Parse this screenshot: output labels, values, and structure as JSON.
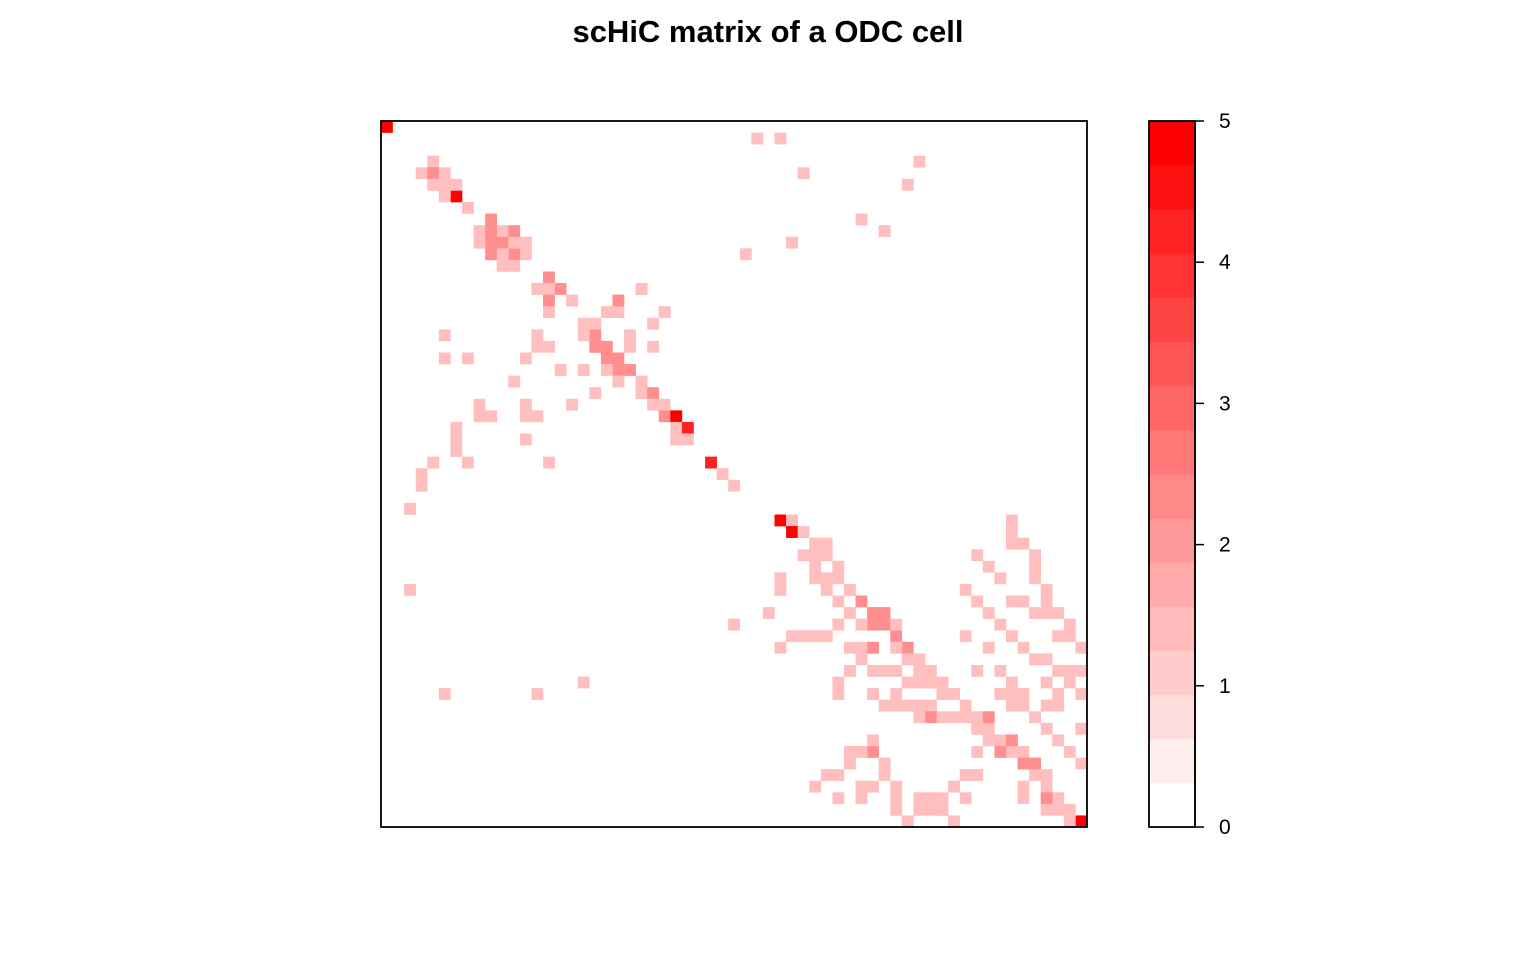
{
  "chart_data": {
    "type": "heatmap",
    "title": "scHiC matrix of a ODC cell",
    "xlabel": "",
    "ylabel": "",
    "n_bins": 61,
    "value_range": [
      0,
      5
    ],
    "colorbar": {
      "ticks": [
        0,
        1,
        2,
        3,
        4,
        5
      ],
      "tick_labels": [
        "0",
        "1",
        "2",
        "3",
        "4",
        "5"
      ],
      "levels": 16,
      "low_color": "#ffffff",
      "high_color": "#ff0000",
      "placement": "right"
    },
    "cells": [
      [
        0,
        0,
        5
      ],
      [
        60,
        60,
        5
      ],
      [
        4,
        3,
        1
      ],
      [
        3,
        4,
        1
      ],
      [
        4,
        4,
        2
      ],
      [
        5,
        4,
        1
      ],
      [
        4,
        5,
        1
      ],
      [
        5,
        5,
        1
      ],
      [
        6,
        6,
        4.7
      ],
      [
        5,
        6,
        1
      ],
      [
        6,
        5,
        1
      ],
      [
        7,
        7,
        1
      ],
      [
        9,
        8,
        2
      ],
      [
        10,
        9,
        1
      ],
      [
        8,
        9,
        1
      ],
      [
        9,
        9,
        2
      ],
      [
        10,
        10,
        2
      ],
      [
        11,
        11,
        2
      ],
      [
        9,
        10,
        2
      ],
      [
        10,
        11,
        1
      ],
      [
        11,
        10,
        1
      ],
      [
        12,
        10,
        1
      ],
      [
        9,
        11,
        2
      ],
      [
        11,
        9,
        2
      ],
      [
        10,
        12,
        1
      ],
      [
        11,
        12,
        1
      ],
      [
        12,
        11,
        1
      ],
      [
        8,
        10,
        1
      ],
      [
        14,
        13,
        2
      ],
      [
        15,
        14,
        2
      ],
      [
        16,
        15,
        1
      ],
      [
        13,
        14,
        1
      ],
      [
        14,
        14,
        1
      ],
      [
        14,
        15,
        2
      ],
      [
        14,
        16,
        1
      ],
      [
        18,
        18,
        2
      ],
      [
        17,
        18,
        1
      ],
      [
        18,
        17,
        1
      ],
      [
        17,
        17,
        1
      ],
      [
        18,
        19,
        2
      ],
      [
        19,
        19,
        2
      ],
      [
        19,
        20,
        2
      ],
      [
        20,
        20,
        2
      ],
      [
        20,
        21,
        2
      ],
      [
        21,
        21,
        2
      ],
      [
        19,
        21,
        1
      ],
      [
        21,
        19,
        1
      ],
      [
        20,
        22,
        1
      ],
      [
        22,
        22,
        1
      ],
      [
        22,
        23,
        1
      ],
      [
        23,
        23,
        2
      ],
      [
        23,
        24,
        1
      ],
      [
        24,
        24,
        1
      ],
      [
        24,
        25,
        2
      ],
      [
        25,
        25,
        4.7
      ],
      [
        25,
        26,
        1
      ],
      [
        26,
        26,
        4.3
      ],
      [
        26,
        27,
        1
      ],
      [
        25,
        27,
        1
      ],
      [
        28,
        29,
        4.3
      ],
      [
        29,
        30,
        1
      ],
      [
        30,
        31,
        1
      ],
      [
        34,
        34,
        5
      ],
      [
        35,
        34,
        1
      ],
      [
        35,
        35,
        5
      ],
      [
        36,
        35,
        1
      ],
      [
        37,
        36,
        1
      ],
      [
        38,
        36,
        1
      ],
      [
        37,
        37,
        1
      ],
      [
        37,
        38,
        1
      ],
      [
        36,
        37,
        1
      ],
      [
        38,
        37,
        1
      ],
      [
        39,
        38,
        1
      ],
      [
        38,
        39,
        1
      ],
      [
        39,
        39,
        1
      ],
      [
        40,
        40,
        1
      ],
      [
        41,
        41,
        2
      ],
      [
        42,
        42,
        2
      ],
      [
        43,
        43,
        2
      ],
      [
        44,
        44,
        2
      ],
      [
        43,
        42,
        2
      ],
      [
        42,
        43,
        2
      ],
      [
        44,
        43,
        1
      ],
      [
        45,
        45,
        2
      ],
      [
        45,
        46,
        1
      ],
      [
        46,
        46,
        1
      ],
      [
        47,
        47,
        1
      ],
      [
        46,
        47,
        1
      ],
      [
        47,
        48,
        1
      ],
      [
        48,
        48,
        1
      ],
      [
        49,
        49,
        1
      ],
      [
        50,
        50,
        1
      ],
      [
        51,
        51,
        1
      ],
      [
        52,
        52,
        1
      ],
      [
        53,
        53,
        1
      ],
      [
        54,
        54,
        1
      ],
      [
        55,
        55,
        1
      ],
      [
        56,
        56,
        1
      ],
      [
        57,
        57,
        1
      ],
      [
        58,
        58,
        1
      ],
      [
        59,
        59,
        1
      ],
      [
        52,
        51,
        2
      ],
      [
        51,
        52,
        1
      ],
      [
        53,
        54,
        2
      ],
      [
        54,
        53,
        2
      ],
      [
        55,
        54,
        1
      ],
      [
        56,
        55,
        2
      ],
      [
        57,
        56,
        1
      ],
      [
        3,
        31,
        1
      ],
      [
        2,
        33,
        1
      ],
      [
        2,
        40,
        1
      ],
      [
        17,
        48,
        1
      ],
      [
        5,
        49,
        1
      ],
      [
        13,
        49,
        1
      ],
      [
        12,
        24,
        1
      ],
      [
        12,
        25,
        1
      ],
      [
        13,
        25,
        1
      ],
      [
        12,
        27,
        1
      ],
      [
        14,
        29,
        1
      ],
      [
        15,
        21,
        1
      ],
      [
        17,
        21,
        1
      ],
      [
        16,
        24,
        1
      ],
      [
        18,
        23,
        1
      ],
      [
        6,
        28,
        1
      ],
      [
        7,
        29,
        1
      ],
      [
        6,
        27,
        1
      ],
      [
        6,
        26,
        1
      ],
      [
        4,
        29,
        1
      ],
      [
        3,
        30,
        1
      ],
      [
        5,
        20,
        1
      ],
      [
        5,
        18,
        1
      ],
      [
        7,
        20,
        1
      ],
      [
        8,
        24,
        1
      ],
      [
        8,
        25,
        1
      ],
      [
        9,
        25,
        1
      ],
      [
        11,
        22,
        1
      ],
      [
        12,
        20,
        1
      ],
      [
        13,
        18,
        1
      ],
      [
        13,
        19,
        1
      ],
      [
        14,
        19,
        1
      ],
      [
        20,
        16,
        1
      ],
      [
        20,
        15,
        2
      ],
      [
        19,
        16,
        1
      ],
      [
        22,
        14,
        1
      ],
      [
        24,
        16,
        1
      ],
      [
        23,
        17,
        1
      ],
      [
        21,
        18,
        1
      ],
      [
        23,
        19,
        1
      ],
      [
        31,
        11,
        1
      ],
      [
        35,
        10,
        1
      ],
      [
        43,
        9,
        1
      ],
      [
        41,
        8,
        1
      ],
      [
        45,
        5,
        1
      ],
      [
        46,
        3,
        1
      ],
      [
        36,
        4,
        1
      ],
      [
        32,
        1,
        1
      ],
      [
        34,
        1,
        1
      ],
      [
        37,
        39,
        1
      ],
      [
        38,
        40,
        1
      ],
      [
        39,
        41,
        1
      ],
      [
        40,
        42,
        1
      ],
      [
        41,
        43,
        1
      ],
      [
        42,
        45,
        2
      ],
      [
        44,
        45,
        1
      ],
      [
        43,
        47,
        1
      ],
      [
        44,
        47,
        1
      ],
      [
        44,
        49,
        1
      ],
      [
        45,
        50,
        1
      ],
      [
        46,
        50,
        1
      ],
      [
        47,
        50,
        1
      ],
      [
        47,
        51,
        2
      ],
      [
        48,
        51,
        1
      ],
      [
        49,
        51,
        1
      ],
      [
        50,
        51,
        1
      ],
      [
        51,
        52,
        1
      ],
      [
        52,
        53,
        1
      ],
      [
        54,
        41,
        1
      ],
      [
        55,
        41,
        1
      ],
      [
        56,
        42,
        1
      ],
      [
        58,
        44,
        1
      ],
      [
        59,
        44,
        1
      ],
      [
        60,
        45,
        1
      ],
      [
        61,
        45,
        1
      ],
      [
        61,
        46,
        1
      ],
      [
        59,
        47,
        1
      ],
      [
        60,
        47,
        1
      ],
      [
        58,
        49,
        1
      ],
      [
        57,
        48,
        1
      ],
      [
        57,
        50,
        1
      ],
      [
        58,
        50,
        1
      ],
      [
        51,
        37,
        1
      ],
      [
        52,
        38,
        1
      ],
      [
        53,
        39,
        1
      ],
      [
        50,
        40,
        1
      ],
      [
        51,
        41,
        1
      ],
      [
        52,
        42,
        1
      ],
      [
        53,
        43,
        1
      ],
      [
        54,
        44,
        1
      ],
      [
        55,
        45,
        1
      ],
      [
        56,
        46,
        1
      ],
      [
        57,
        46,
        1
      ],
      [
        58,
        47,
        1
      ],
      [
        59,
        48,
        1
      ],
      [
        60,
        49,
        1
      ],
      [
        61,
        50,
        1
      ],
      [
        61,
        51,
        1
      ],
      [
        60,
        52,
        1
      ],
      [
        39,
        43,
        1
      ],
      [
        38,
        44,
        1
      ],
      [
        41,
        45,
        1
      ],
      [
        40,
        45,
        1
      ],
      [
        41,
        46,
        1
      ],
      [
        40,
        47,
        1
      ],
      [
        42,
        47,
        1
      ],
      [
        39,
        48,
        1
      ],
      [
        39,
        49,
        1
      ],
      [
        42,
        49,
        1
      ],
      [
        43,
        50,
        1
      ],
      [
        44,
        50,
        1
      ],
      [
        46,
        51,
        1
      ],
      [
        50,
        56,
        1
      ],
      [
        51,
        56,
        1
      ],
      [
        49,
        57,
        1
      ],
      [
        50,
        58,
        1
      ],
      [
        47,
        59,
        1
      ],
      [
        48,
        59,
        1
      ],
      [
        49,
        60,
        1
      ],
      [
        50,
        44,
        1
      ],
      [
        52,
        45,
        1
      ],
      [
        51,
        47,
        1
      ],
      [
        53,
        47,
        1
      ],
      [
        54,
        48,
        1
      ],
      [
        55,
        49,
        1
      ],
      [
        54,
        50,
        1
      ],
      [
        55,
        50,
        1
      ],
      [
        56,
        51,
        1
      ],
      [
        57,
        52,
        1
      ],
      [
        58,
        53,
        1
      ],
      [
        59,
        54,
        1
      ],
      [
        60,
        55,
        1
      ],
      [
        51,
        54,
        1
      ],
      [
        55,
        55,
        2
      ],
      [
        55,
        57,
        1
      ],
      [
        57,
        58,
        2
      ],
      [
        58,
        59,
        1
      ],
      [
        59,
        60,
        1
      ],
      [
        55,
        58,
        1
      ],
      [
        57,
        59,
        1
      ],
      [
        44,
        57,
        1
      ],
      [
        44,
        58,
        1
      ],
      [
        44,
        59,
        1
      ],
      [
        45,
        60,
        1
      ],
      [
        45,
        61,
        1
      ],
      [
        46,
        58,
        1
      ],
      [
        47,
        58,
        1
      ],
      [
        46,
        59,
        1
      ],
      [
        48,
        58,
        1
      ],
      [
        48,
        59,
        1
      ],
      [
        41,
        57,
        1
      ],
      [
        41,
        58,
        1
      ],
      [
        43,
        56,
        1
      ],
      [
        39,
        56,
        1
      ],
      [
        39,
        58,
        1
      ],
      [
        37,
        57,
        1
      ],
      [
        38,
        56,
        1
      ],
      [
        40,
        55,
        1
      ],
      [
        43,
        55,
        1
      ],
      [
        42,
        57,
        1
      ],
      [
        42,
        54,
        2
      ],
      [
        41,
        54,
        1
      ],
      [
        42,
        53,
        1
      ],
      [
        40,
        54,
        1
      ],
      [
        53,
        49,
        1
      ],
      [
        54,
        49,
        1
      ],
      [
        48,
        49,
        1
      ],
      [
        47,
        48,
        1
      ],
      [
        46,
        48,
        1
      ],
      [
        45,
        48,
        1
      ],
      [
        34,
        39,
        1
      ],
      [
        34,
        40,
        1
      ],
      [
        34,
        45,
        1
      ],
      [
        33,
        42,
        1
      ],
      [
        30,
        43,
        1
      ],
      [
        35,
        44,
        1
      ],
      [
        36,
        44,
        1
      ],
      [
        37,
        44,
        1
      ],
      [
        54,
        34,
        1
      ],
      [
        54,
        35,
        1
      ],
      [
        54,
        36,
        1
      ],
      [
        55,
        36,
        1
      ],
      [
        56,
        37,
        1
      ],
      [
        56,
        38,
        1
      ],
      [
        56,
        39,
        1
      ],
      [
        57,
        40,
        1
      ],
      [
        57,
        41,
        1
      ],
      [
        57,
        42,
        1
      ],
      [
        59,
        43,
        1
      ],
      [
        58,
        42,
        1
      ]
    ]
  }
}
